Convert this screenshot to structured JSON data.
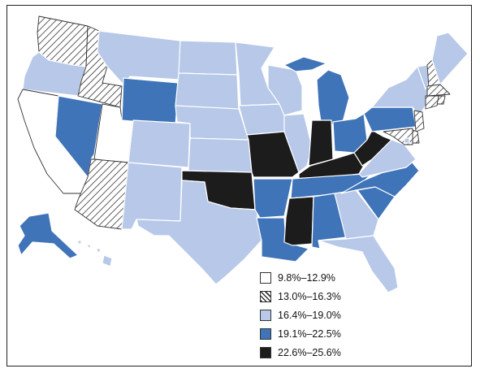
{
  "colors": {
    "class0": "#ffffff",
    "class1": "hatch",
    "class2": "#b7c8e8",
    "class3": "#3f74b8",
    "class4": "#1c1c1c",
    "border": "#ffffff"
  },
  "legend": {
    "items": [
      {
        "label": "9.8%–12.9%",
        "class": 0
      },
      {
        "label": "13.0%–16.3%",
        "class": 1
      },
      {
        "label": "16.4%–19.0%",
        "class": 2
      },
      {
        "label": "19.1%–22.5%",
        "class": 3
      },
      {
        "label": "22.6%–25.6%",
        "class": 4
      }
    ]
  },
  "states": {
    "WA": 1,
    "OR": 2,
    "CA": 0,
    "ID": 1,
    "NV": 3,
    "UT": 0,
    "AZ": 1,
    "MT": 2,
    "WY": 3,
    "CO": 2,
    "NM": 2,
    "ND": 2,
    "SD": 2,
    "NE": 2,
    "KS": 2,
    "OK": 4,
    "TX": 2,
    "MN": 2,
    "IA": 2,
    "MO": 4,
    "AR": 3,
    "LA": 3,
    "WI": 2,
    "IL": 2,
    "MI": 3,
    "IN": 4,
    "OH": 3,
    "KY": 4,
    "TN": 3,
    "MS": 4,
    "AL": 3,
    "GA": 2,
    "FL": 2,
    "SC": 3,
    "NC": 3,
    "VA": 2,
    "WV": 4,
    "PA": 3,
    "NY": 2,
    "VT": 2,
    "NH": 1,
    "ME": 2,
    "MA": 1,
    "RI": 1,
    "CT": 1,
    "NJ": 1,
    "DE": 1,
    "MD": 1,
    "DC": 2,
    "AK": 3,
    "HI": 2
  }
}
